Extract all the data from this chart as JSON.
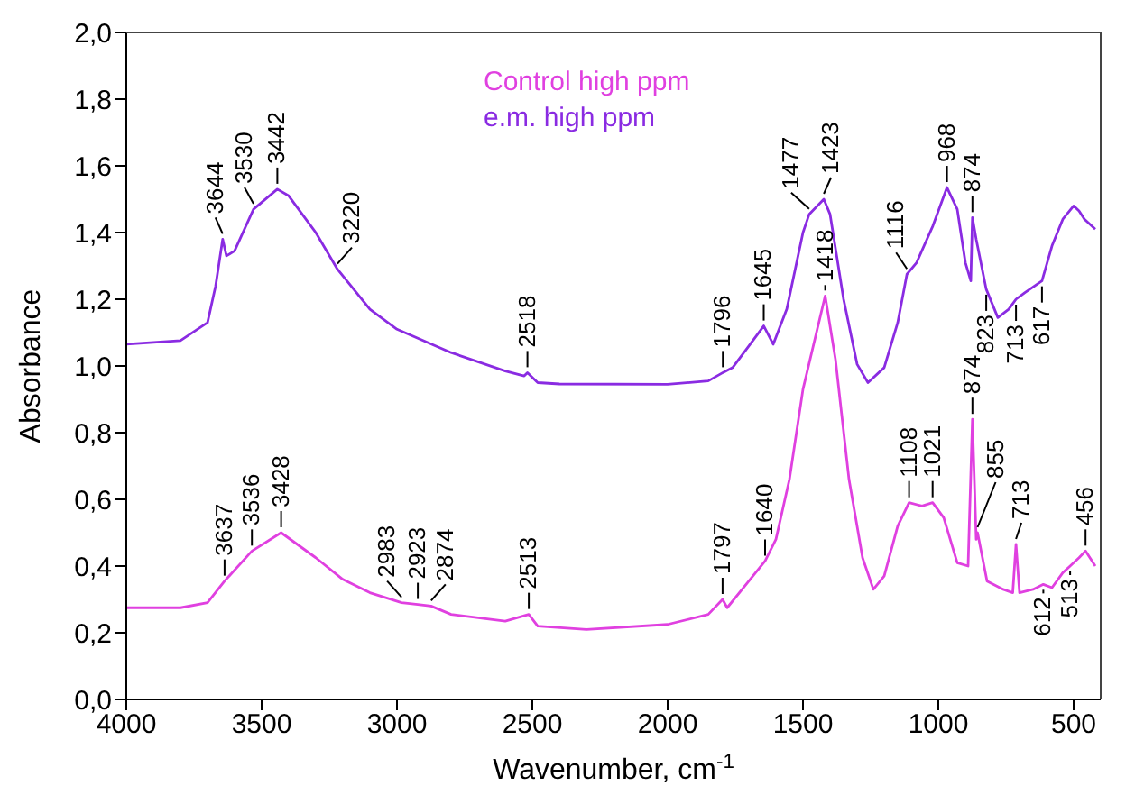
{
  "chart_data": {
    "type": "line",
    "xlabel": "Wavenumber, cm$^{-1}$",
    "ylabel": "Absorbance",
    "xlim": [
      4000,
      400
    ],
    "xticks": [
      4000,
      3500,
      3000,
      2500,
      2000,
      1500,
      1000,
      500
    ],
    "ylim": [
      0,
      2
    ],
    "yticks": [
      {
        "value": 0,
        "label": "0,0"
      },
      {
        "value": 0.2,
        "label": "0,2"
      },
      {
        "value": 0.4,
        "label": "0,4"
      },
      {
        "value": 0.6,
        "label": "0,6"
      },
      {
        "value": 0.8,
        "label": "0,8"
      },
      {
        "value": 1,
        "label": "1,0"
      },
      {
        "value": 1.2,
        "label": "1,2"
      },
      {
        "value": 1.4,
        "label": "1,4"
      },
      {
        "value": 1.6,
        "label": "1,6"
      },
      {
        "value": 1.8,
        "label": "1,8"
      },
      {
        "value": 2,
        "label": "2,0"
      }
    ],
    "grid": false,
    "legend": "top",
    "marker": "none",
    "line_style": "solid",
    "series": [
      {
        "name": "Control high ppm",
        "color": "#e040e0",
        "x": [
          4000,
          3800,
          3700,
          3637,
          3536,
          3428,
          3300,
          3200,
          3100,
          2983,
          2923,
          2874,
          2800,
          2600,
          2513,
          2480,
          2300,
          2000,
          1850,
          1797,
          1780,
          1700,
          1640,
          1600,
          1550,
          1500,
          1418,
          1380,
          1330,
          1280,
          1240,
          1200,
          1150,
          1108,
          1060,
          1021,
          980,
          930,
          890,
          874,
          860,
          855,
          820,
          760,
          725,
          713,
          700,
          650,
          612,
          580,
          540,
          513,
          480,
          456,
          420
        ],
        "values": [
          0.275,
          0.275,
          0.29,
          0.355,
          0.445,
          0.5,
          0.425,
          0.36,
          0.32,
          0.29,
          0.285,
          0.28,
          0.255,
          0.235,
          0.255,
          0.22,
          0.21,
          0.225,
          0.255,
          0.3,
          0.275,
          0.355,
          0.415,
          0.48,
          0.66,
          0.93,
          1.21,
          1.02,
          0.66,
          0.425,
          0.33,
          0.37,
          0.52,
          0.59,
          0.58,
          0.59,
          0.545,
          0.41,
          0.4,
          0.84,
          0.48,
          0.5,
          0.355,
          0.33,
          0.32,
          0.465,
          0.32,
          0.33,
          0.345,
          0.335,
          0.38,
          0.4,
          0.425,
          0.445,
          0.4
        ]
      },
      {
        "name": "e.m. high ppm",
        "color": "#8a2be2",
        "x": [
          4000,
          3800,
          3700,
          3670,
          3644,
          3630,
          3600,
          3530,
          3442,
          3400,
          3300,
          3220,
          3100,
          3000,
          2800,
          2600,
          2530,
          2518,
          2480,
          2400,
          2000,
          1850,
          1796,
          1760,
          1700,
          1645,
          1610,
          1560,
          1500,
          1477,
          1423,
          1400,
          1350,
          1300,
          1260,
          1200,
          1150,
          1116,
          1080,
          1020,
          968,
          930,
          900,
          880,
          874,
          860,
          823,
          780,
          740,
          713,
          680,
          617,
          580,
          540,
          500,
          480,
          460,
          420
        ],
        "values": [
          1.065,
          1.076,
          1.13,
          1.24,
          1.38,
          1.33,
          1.345,
          1.47,
          1.53,
          1.51,
          1.4,
          1.29,
          1.17,
          1.11,
          1.04,
          0.985,
          0.97,
          0.98,
          0.95,
          0.946,
          0.945,
          0.955,
          0.98,
          0.995,
          1.06,
          1.12,
          1.065,
          1.17,
          1.4,
          1.455,
          1.5,
          1.455,
          1.2,
          1.005,
          0.95,
          0.995,
          1.13,
          1.275,
          1.31,
          1.42,
          1.535,
          1.47,
          1.31,
          1.255,
          1.445,
          1.38,
          1.23,
          1.145,
          1.17,
          1.2,
          1.22,
          1.255,
          1.36,
          1.44,
          1.48,
          1.465,
          1.44,
          1.41
        ]
      }
    ],
    "annotations": [
      {
        "text": "3644",
        "x": 3644,
        "y": 1.38
      },
      {
        "text": "3530",
        "x": 3530,
        "y": 1.47
      },
      {
        "text": "3442",
        "x": 3442,
        "y": 1.53
      },
      {
        "text": "3220",
        "x": 3220,
        "y": 1.29
      },
      {
        "text": "2518",
        "x": 2518,
        "y": 0.98
      },
      {
        "text": "1796",
        "x": 1796,
        "y": 0.98
      },
      {
        "text": "1645",
        "x": 1645,
        "y": 1.12
      },
      {
        "text": "1477",
        "x": 1477,
        "y": 1.455
      },
      {
        "text": "1423",
        "x": 1423,
        "y": 1.5
      },
      {
        "text": "1116",
        "x": 1116,
        "y": 1.275
      },
      {
        "text": "968",
        "x": 968,
        "y": 1.535
      },
      {
        "text": "874",
        "x": 874,
        "y": 1.445
      },
      {
        "text": "823",
        "x": 823,
        "y": 1.23
      },
      {
        "text": "713",
        "x": 713,
        "y": 1.2
      },
      {
        "text": "617",
        "x": 617,
        "y": 1.255
      },
      {
        "text": "3637",
        "x": 3637,
        "y": 0.355
      },
      {
        "text": "3536",
        "x": 3536,
        "y": 0.445
      },
      {
        "text": "3428",
        "x": 3428,
        "y": 0.5
      },
      {
        "text": "2983",
        "x": 2983,
        "y": 0.29
      },
      {
        "text": "2923",
        "x": 2923,
        "y": 0.285
      },
      {
        "text": "2874",
        "x": 2874,
        "y": 0.28
      },
      {
        "text": "2513",
        "x": 2513,
        "y": 0.255
      },
      {
        "text": "1797",
        "x": 1797,
        "y": 0.3
      },
      {
        "text": "1640",
        "x": 1640,
        "y": 0.415
      },
      {
        "text": "1418",
        "x": 1418,
        "y": 1.21
      },
      {
        "text": "1108",
        "x": 1108,
        "y": 0.59
      },
      {
        "text": "1021",
        "x": 1021,
        "y": 0.59
      },
      {
        "text": "874",
        "x": 874,
        "y": 0.84
      },
      {
        "text": "855",
        "x": 855,
        "y": 0.5
      },
      {
        "text": "713",
        "x": 713,
        "y": 0.465
      },
      {
        "text": "612",
        "x": 612,
        "y": 0.345
      },
      {
        "text": "513",
        "x": 513,
        "y": 0.4
      },
      {
        "text": "456",
        "x": 456,
        "y": 0.445
      }
    ]
  }
}
